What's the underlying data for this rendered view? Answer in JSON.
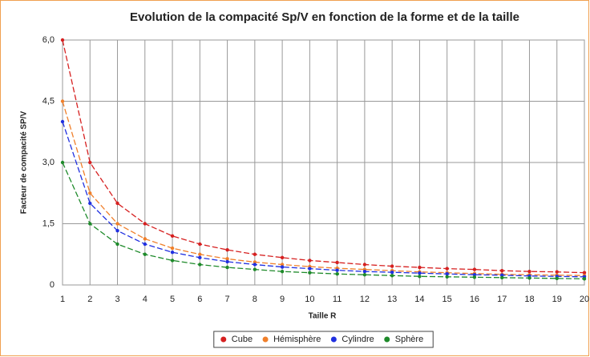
{
  "chart_data": {
    "type": "line",
    "title": "Evolution de la compacité Sp/V en fonction de la forme et de la taille",
    "xlabel": "Taille R",
    "ylabel": "Facteur de compacité SP/V",
    "x": [
      1,
      2,
      3,
      4,
      5,
      6,
      7,
      8,
      9,
      10,
      11,
      12,
      13,
      14,
      15,
      16,
      17,
      18,
      19,
      20
    ],
    "xlim": [
      1,
      20
    ],
    "xticks": [
      1,
      2,
      3,
      4,
      5,
      6,
      7,
      8,
      9,
      10,
      11,
      12,
      13,
      14,
      15,
      16,
      17,
      18,
      19,
      20
    ],
    "ylim": [
      0,
      6
    ],
    "yticks": [
      0,
      {
        "value": 1.5,
        "label": "1,5"
      },
      {
        "value": 3,
        "label": "3,0"
      },
      {
        "value": 4.5,
        "label": "4,5"
      },
      {
        "value": 6,
        "label": "6,0"
      }
    ],
    "grid": true,
    "legend": "bottom",
    "series": [
      {
        "name": "Cube",
        "color": "#d62020",
        "values": [
          6,
          3,
          2,
          1.5,
          1.2,
          1,
          0.86,
          0.75,
          0.67,
          0.6,
          0.55,
          0.5,
          0.46,
          0.43,
          0.4,
          0.38,
          0.35,
          0.33,
          0.32,
          0.3
        ]
      },
      {
        "name": "Hémisphère",
        "color": "#f07f2a",
        "values": [
          4.5,
          2.25,
          1.5,
          1.13,
          0.9,
          0.75,
          0.64,
          0.56,
          0.5,
          0.45,
          0.41,
          0.38,
          0.35,
          0.32,
          0.3,
          0.28,
          0.26,
          0.25,
          0.24,
          0.23
        ]
      },
      {
        "name": "Cylindre",
        "color": "#2030e0",
        "values": [
          4,
          2,
          1.33,
          1,
          0.8,
          0.67,
          0.57,
          0.5,
          0.44,
          0.4,
          0.36,
          0.33,
          0.31,
          0.29,
          0.27,
          0.25,
          0.24,
          0.22,
          0.21,
          0.2
        ]
      },
      {
        "name": "Sphère",
        "color": "#1e8a2a",
        "values": [
          3,
          1.5,
          1,
          0.75,
          0.6,
          0.5,
          0.43,
          0.38,
          0.33,
          0.3,
          0.27,
          0.25,
          0.23,
          0.21,
          0.2,
          0.19,
          0.18,
          0.17,
          0.16,
          0.15
        ]
      }
    ]
  }
}
